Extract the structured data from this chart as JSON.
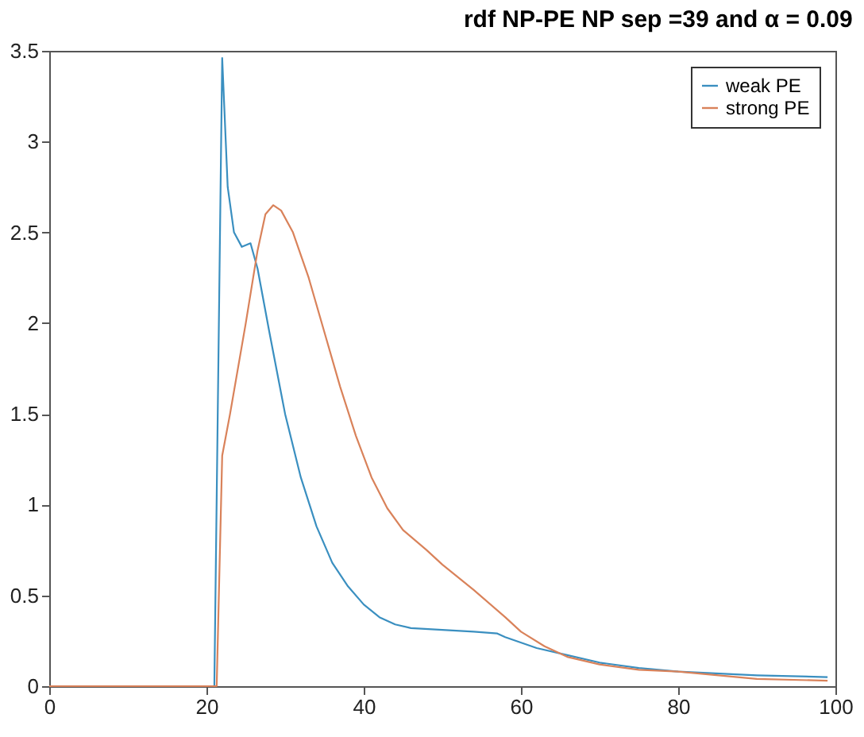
{
  "chart_data": {
    "type": "line",
    "title": "rdf NP-PE NP sep =39 and α = 0.09",
    "xlim": [
      0,
      100
    ],
    "xticks": [
      0,
      20,
      40,
      60,
      80,
      100
    ],
    "ylim": [
      0,
      3.5
    ],
    "yticks": [
      0,
      0.5,
      1,
      1.5,
      2,
      2.5,
      3,
      3.5
    ],
    "grid": false,
    "legend": "top right",
    "series": [
      {
        "name": "weak PE",
        "color": "#3a8fc0",
        "x": [
          0,
          10,
          21,
          22,
          22.7,
          23.5,
          24.5,
          25.6,
          26.5,
          28,
          30,
          32,
          34,
          36,
          38,
          40,
          42,
          44,
          46,
          50,
          54,
          57,
          58,
          62,
          66,
          70,
          75,
          80,
          90,
          99
        ],
        "values": [
          0,
          0,
          0,
          3.46,
          2.75,
          2.5,
          2.42,
          2.44,
          2.3,
          1.95,
          1.5,
          1.15,
          0.88,
          0.68,
          0.55,
          0.45,
          0.38,
          0.34,
          0.32,
          0.31,
          0.3,
          0.29,
          0.27,
          0.21,
          0.17,
          0.13,
          0.1,
          0.08,
          0.06,
          0.05
        ]
      },
      {
        "name": "strong PE",
        "color": "#d9825a",
        "x": [
          0,
          10,
          21.3,
          22,
          23,
          25,
          26.5,
          27.5,
          28.5,
          29.5,
          31,
          33,
          35,
          37,
          39,
          41,
          43,
          45,
          48,
          50,
          54,
          58,
          60,
          63,
          66,
          70,
          75,
          80,
          90,
          99
        ],
        "values": [
          0,
          0,
          0,
          1.27,
          1.5,
          2.0,
          2.4,
          2.6,
          2.65,
          2.62,
          2.5,
          2.25,
          1.95,
          1.65,
          1.38,
          1.15,
          0.98,
          0.86,
          0.75,
          0.67,
          0.53,
          0.38,
          0.3,
          0.22,
          0.16,
          0.12,
          0.09,
          0.08,
          0.04,
          0.03
        ]
      }
    ]
  }
}
